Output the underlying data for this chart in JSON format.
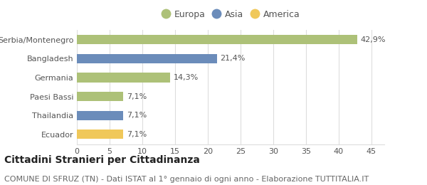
{
  "categories": [
    "Serbia/Montenegro",
    "Bangladesh",
    "Germania",
    "Paesi Bassi",
    "Thailandia",
    "Ecuador"
  ],
  "values": [
    42.9,
    21.4,
    14.3,
    7.1,
    7.1,
    7.1
  ],
  "labels": [
    "42,9%",
    "21,4%",
    "14,3%",
    "7,1%",
    "7,1%",
    "7,1%"
  ],
  "colors": [
    "#adc178",
    "#6b8cba",
    "#adc178",
    "#adc178",
    "#6b8cba",
    "#f0c85a"
  ],
  "legend_items": [
    {
      "label": "Europa",
      "color": "#adc178"
    },
    {
      "label": "Asia",
      "color": "#6b8cba"
    },
    {
      "label": "America",
      "color": "#f0c85a"
    }
  ],
  "xlim": [
    0,
    47
  ],
  "xticks": [
    0,
    5,
    10,
    15,
    20,
    25,
    30,
    35,
    40,
    45
  ],
  "title": "Cittadini Stranieri per Cittadinanza",
  "subtitle": "COMUNE DI SFRUZ (TN) - Dati ISTAT al 1° gennaio di ogni anno - Elaborazione TUTTITALIA.IT",
  "bg_color": "#ffffff",
  "grid_color": "#dddddd",
  "bar_height": 0.5,
  "title_fontsize": 10,
  "subtitle_fontsize": 8,
  "label_fontsize": 8,
  "tick_fontsize": 8,
  "legend_fontsize": 9
}
